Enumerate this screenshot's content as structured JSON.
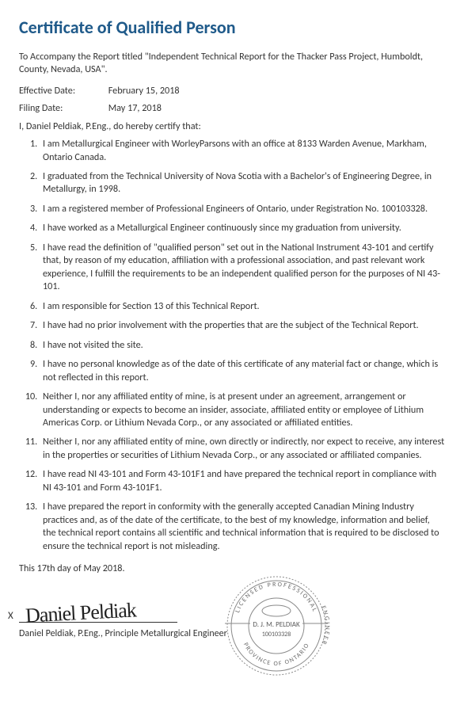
{
  "title": "Certificate of Qualified Person",
  "intro": "To Accompany the Report titled \"Independent Technical Report for the Thacker Pass Project, Humboldt, County, Nevada, USA\".",
  "effective": {
    "label": "Effective Date:",
    "value": "February 15, 2018"
  },
  "filing": {
    "label": "Filing Date:",
    "value": "May 17, 2018"
  },
  "certLine": "I, Daniel Peldiak, P.Eng., do hereby certify that:",
  "items": [
    "I am Metallurgical Engineer with WorleyParsons with an office at 8133 Warden Avenue, Markham, Ontario Canada.",
    "I graduated from the Technical University of Nova Scotia with a Bachelor's of Engineering Degree, in Metallurgy, in 1998.",
    "I am a registered member of Professional Engineers of Ontario, under Registration No. 100103328.",
    "I have worked as a Metallurgical Engineer continuously since my graduation from university.",
    "I have read the definition of \"qualified person\" set out in the National Instrument 43-101 and certify that, by reason of my education, affiliation with a professional association, and past relevant work experience, I fulfill the requirements to be an independent qualified person for the purposes of NI 43-101.",
    "I am responsible for Section 13 of this Technical Report.",
    "I have had no prior involvement with the properties that are the subject of the Technical Report.",
    "I have not visited the site.",
    "I have no personal knowledge as of the date of this certificate of any material fact or change, which is not reflected in this report.",
    "Neither I, nor any affiliated entity of mine, is at present under an agreement, arrangement or understanding or expects to become an insider, associate, affiliated entity or employee of Lithium Americas Corp. or Lithium Nevada Corp., or any associated or affiliated entities.",
    "Neither I, nor any affiliated entity of mine, own directly or indirectly, nor expect to receive, any interest in the properties or securities of Lithium Nevada Corp., or any associated or affiliated companies.",
    "I have read NI 43-101 and Form 43-101F1 and have prepared the technical report in compliance with NI 43-101 and Form 43-101F1.",
    "I have prepared the report in conformity with the generally accepted Canadian Mining Industry practices and, as of the date of the certificate, to the best of my knowledge, information and belief, the technical report contains all scientific and technical information that is required to be disclosed to ensure the technical report is not misleading."
  ],
  "closing": "This 17th day of May 2018.",
  "sigX": "X",
  "signatureScrawl": "Daniel Peldiak",
  "sigName": "Daniel Peldiak, P.Eng., Principle Metallurgical Engineer",
  "stamp": {
    "topArc": "LICENSED PROFESSIONAL",
    "rightWord": "ENGINEER",
    "bottomArc": "PROVINCE OF ONTARIO",
    "name": "D. J. M. PELDIAK",
    "number": "100103328",
    "outer_stroke": "#8a8a8a",
    "inner_stroke": "#8a8a8a",
    "text_color": "#6a6a6a",
    "center_text_color": "#5a5a5a"
  }
}
